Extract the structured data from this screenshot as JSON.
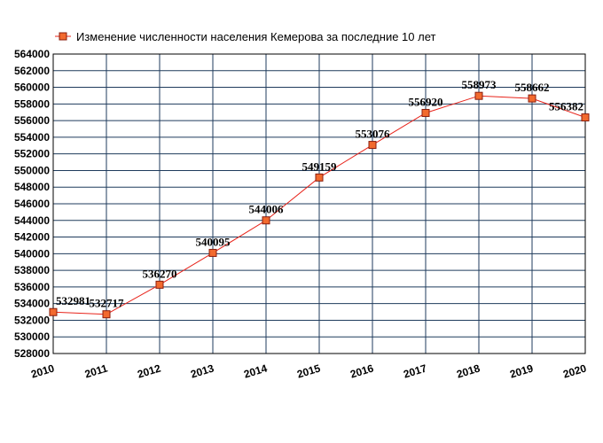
{
  "chart_data": {
    "type": "line",
    "title": "",
    "xlabel": "",
    "ylabel": "",
    "categories": [
      "2010",
      "2011",
      "2012",
      "2013",
      "2014",
      "2015",
      "2016",
      "2017",
      "2018",
      "2019",
      "2020"
    ],
    "series": [
      {
        "name": "Изменение численности населения Кемерова за последние 10 лет",
        "values": [
          532981,
          532717,
          536270,
          540095,
          544006,
          549159,
          553076,
          556920,
          558973,
          558662,
          556382
        ],
        "color": "#e8231a",
        "marker_color": "#f26a2e"
      }
    ],
    "data_labels": [
      "532981",
      "532717",
      "536270",
      "540095",
      "544006",
      "549159",
      "553076",
      "556920",
      "558973",
      "558662",
      "556382"
    ],
    "yticks": [
      "528000",
      "530000",
      "532000",
      "534000",
      "536000",
      "538000",
      "540000",
      "542000",
      "544000",
      "546000",
      "548000",
      "550000",
      "552000",
      "554000",
      "556000",
      "558000",
      "560000",
      "562000",
      "564000"
    ],
    "ylim": [
      528000,
      564000
    ],
    "grid": true,
    "grid_color": "#1f3b5c",
    "legend_position": "top-left"
  }
}
